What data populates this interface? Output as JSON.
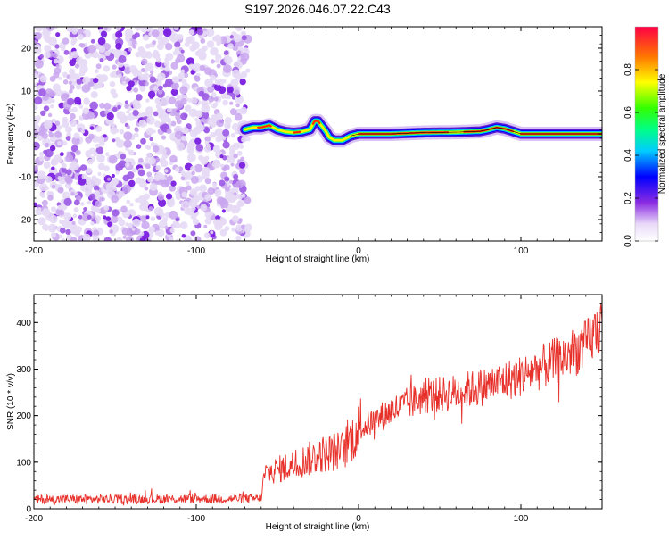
{
  "title": "S197.2026.046.07.22.C43",
  "chart_data": [
    {
      "type": "heatmap",
      "name": "spectrogram",
      "xlabel": "Height of straight line (km)",
      "ylabel": "Frequency (Hz)",
      "xlim": [
        -200,
        150
      ],
      "ylim": [
        -25,
        25
      ],
      "x_ticks": [
        -200,
        -100,
        0,
        100
      ],
      "x_tick_labels": [
        "-200",
        "-100",
        "0",
        "100"
      ],
      "y_ticks": [
        -20,
        -10,
        0,
        10,
        20
      ],
      "y_tick_labels": [
        "-20",
        "-10",
        "0",
        "10",
        "20"
      ],
      "noise_region_x": [
        -200,
        -70
      ],
      "signal_start_x": -70,
      "signal_trace": {
        "x": [
          -70,
          -65,
          -60,
          -55,
          -50,
          -45,
          -40,
          -35,
          -30,
          -27,
          -25,
          -22,
          -20,
          -18,
          -15,
          -10,
          -5,
          0,
          20,
          40,
          60,
          75,
          80,
          85,
          90,
          95,
          100,
          120,
          150
        ],
        "y": [
          1,
          1.5,
          1.5,
          2,
          1,
          0.5,
          0.3,
          0.5,
          1,
          3,
          3,
          1.5,
          0.5,
          -0.8,
          -1.5,
          -1.5,
          -0.5,
          0,
          0,
          0.3,
          0.4,
          0.6,
          1,
          1.5,
          1.2,
          0.6,
          0,
          0,
          0
        ]
      },
      "colorbar": {
        "label": "Normalized spectral amplitude",
        "range": [
          0,
          1
        ],
        "ticks": [
          0.0,
          0.2,
          0.4,
          0.6,
          0.8
        ],
        "tick_labels": [
          "0.0",
          "0.2",
          "0.4",
          "0.6",
          "0.8"
        ]
      }
    },
    {
      "type": "line",
      "name": "snr",
      "xlabel": "Height of straight line (km)",
      "ylabel": "SNR (10 * v/v)",
      "xlim": [
        -200,
        150
      ],
      "ylim": [
        0,
        460
      ],
      "x_ticks": [
        -200,
        -100,
        0,
        100
      ],
      "x_tick_labels": [
        "-200",
        "-100",
        "0",
        "100"
      ],
      "y_ticks": [
        0,
        100,
        200,
        300,
        400
      ],
      "y_tick_labels": [
        "0",
        "100",
        "200",
        "300",
        "400"
      ],
      "color": "#e8302a",
      "trend": {
        "x": [
          -200,
          -60,
          -58,
          -40,
          -20,
          -10,
          0,
          20,
          40,
          60,
          80,
          100,
          120,
          140,
          150
        ],
        "y": [
          20,
          22,
          75,
          95,
          120,
          125,
          170,
          210,
          240,
          250,
          265,
          285,
          315,
          350,
          400
        ]
      }
    }
  ]
}
